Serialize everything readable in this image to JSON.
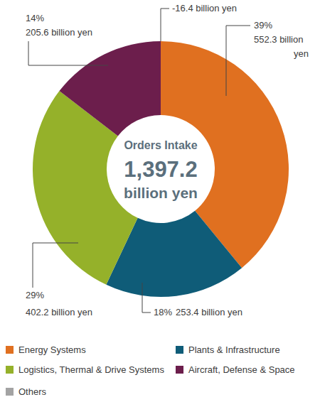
{
  "chart_data": {
    "type": "donut",
    "categories": [
      "Energy Systems",
      "Plants & Infrastructure",
      "Logistics, Thermal & Drive Systems",
      "Aircraft, Defense & Space",
      "Others"
    ],
    "values": [
      552.3,
      253.4,
      402.2,
      205.6,
      -16.4
    ],
    "value_labels": [
      "552.3 billion yen",
      "253.4 billion yen",
      "402.2 billion yen",
      "205.6 billion yen",
      "-16.4 billion yen"
    ],
    "percentages": [
      39,
      18,
      29,
      14,
      null
    ],
    "percentage_labels": [
      "39%",
      "18%",
      "29%",
      "14%",
      null
    ],
    "colors": [
      "#e07020",
      "#0f5c78",
      "#95b12a",
      "#6c1e4c",
      "#a3a3a3"
    ],
    "center_text": [
      "Orders Intake",
      "1,397.2",
      "billion yen"
    ],
    "legend": "bottom"
  }
}
